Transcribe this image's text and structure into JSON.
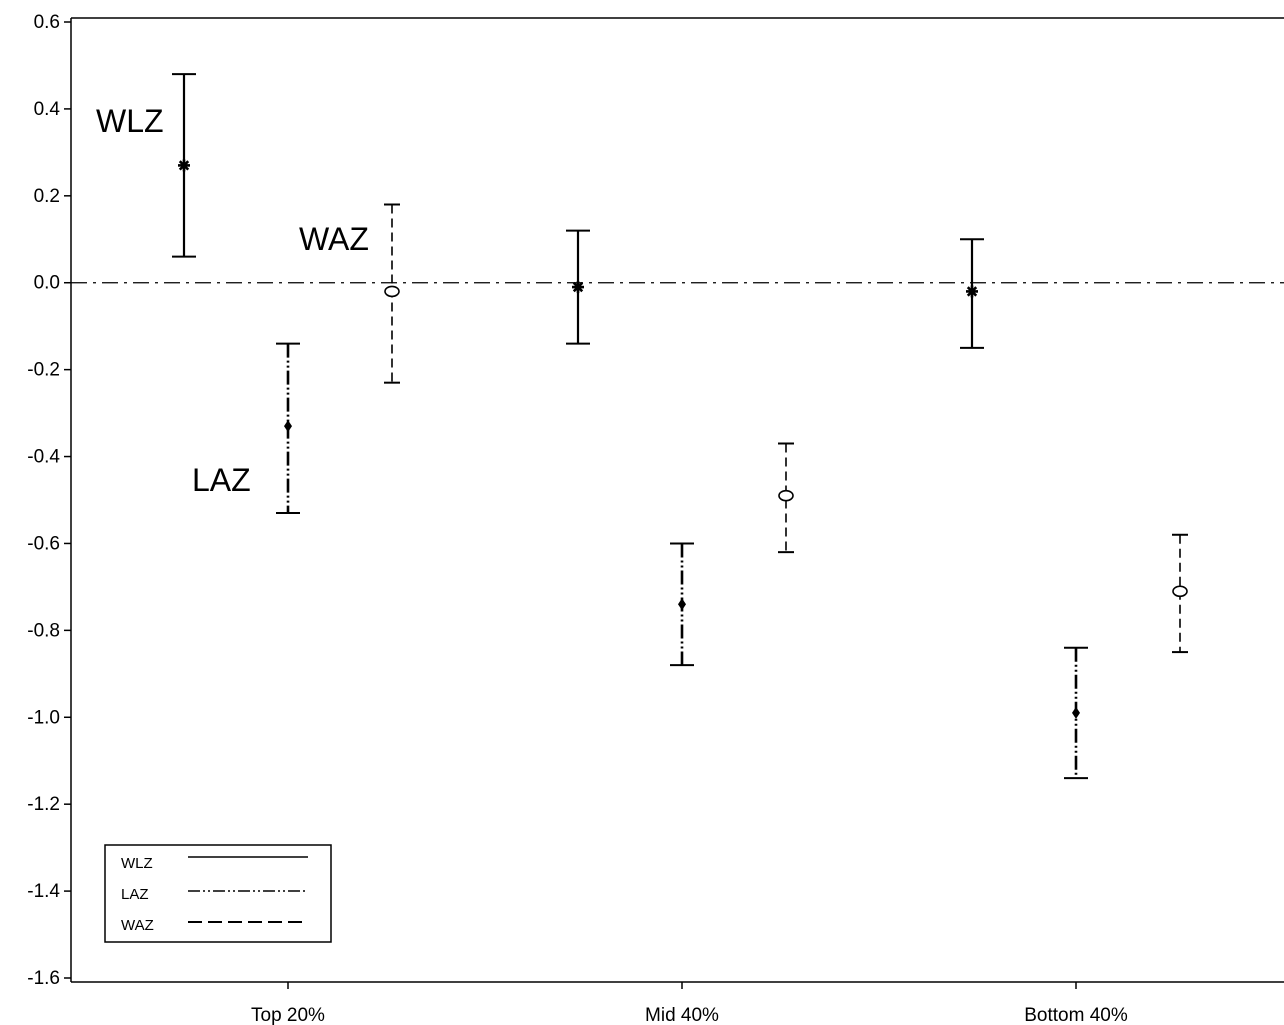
{
  "chart_data": {
    "type": "errorbar",
    "categories": [
      "Top 20%",
      "Mid 40%",
      "Bottom 40%"
    ],
    "ylim": [
      -1.6,
      0.6
    ],
    "yticks": [
      "0.6",
      "0.4",
      "0.2",
      "0.0",
      "-0.2",
      "-0.4",
      "-0.6",
      "-0.8",
      "-1.0",
      "-1.2",
      "-1.4",
      "-1.6"
    ],
    "reference_line": 0.0,
    "series": [
      {
        "name": "WLZ",
        "line_style": "solid",
        "marker": "star",
        "points": [
          {
            "category": "Top 20%",
            "mean": 0.27,
            "lower": 0.06,
            "upper": 0.48
          },
          {
            "category": "Mid 40%",
            "mean": -0.01,
            "lower": -0.14,
            "upper": 0.12
          },
          {
            "category": "Bottom 40%",
            "mean": -0.02,
            "lower": -0.15,
            "upper": 0.1
          }
        ]
      },
      {
        "name": "LAZ",
        "line_style": "dash-dot-dot",
        "marker": "diamond",
        "points": [
          {
            "category": "Top 20%",
            "mean": -0.33,
            "lower": -0.53,
            "upper": -0.14
          },
          {
            "category": "Mid 40%",
            "mean": -0.74,
            "lower": -0.88,
            "upper": -0.6
          },
          {
            "category": "Bottom 40%",
            "mean": -0.99,
            "lower": -1.14,
            "upper": -0.84
          }
        ]
      },
      {
        "name": "WAZ",
        "line_style": "dashed",
        "marker": "open-circle",
        "points": [
          {
            "category": "Top 20%",
            "mean": -0.02,
            "lower": -0.23,
            "upper": 0.18
          },
          {
            "category": "Mid 40%",
            "mean": -0.49,
            "lower": -0.62,
            "upper": -0.37
          },
          {
            "category": "Bottom 40%",
            "mean": -0.71,
            "lower": -0.85,
            "upper": -0.58
          }
        ]
      }
    ],
    "annotations": [
      "WLZ",
      "WAZ",
      "LAZ"
    ],
    "legend": {
      "placement": "bottom-left",
      "entries": [
        "WLZ",
        "LAZ",
        "WAZ"
      ]
    },
    "grid": false
  }
}
